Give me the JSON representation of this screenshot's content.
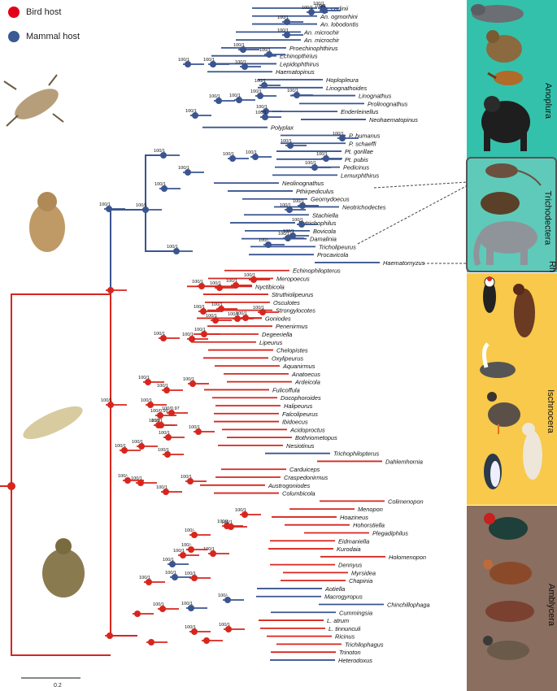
{
  "legend": [
    {
      "label": "Bird host",
      "color": "#e4001b"
    },
    {
      "label": "Mammal host",
      "color": "#3b5a92"
    }
  ],
  "colors": {
    "bird": "#d7261e",
    "mammal": "#3a5590",
    "anoplura_bg": "#2fbfa8",
    "rhyncophthirina_bg": "#3fc6b3",
    "ischnocera_bg": "#f7c842",
    "amblycera_bg": "#8b6f5e"
  },
  "groups": [
    {
      "label": "Anoplura",
      "color": "#2fbfa8"
    },
    {
      "label": "Trichodectera",
      "color": "#2fbfa8"
    },
    {
      "label": "Rh",
      "color": "#3fc6b3"
    },
    {
      "label": "Ischnocera",
      "color": "#f7c842"
    },
    {
      "label": "Amblycera",
      "color": "#8b6f5e"
    }
  ],
  "scale_label": "0.2",
  "taxa": [
    {
      "name": "An. carlinii",
      "host": "mammal"
    },
    {
      "name": "An. ogmorhini",
      "host": "mammal"
    },
    {
      "name": "An. lobodontis",
      "host": "mammal"
    },
    {
      "name": "An. microchir",
      "host": "mammal"
    },
    {
      "name": "An. microchir",
      "host": "mammal"
    },
    {
      "name": "Proechinophthirus",
      "host": "mammal"
    },
    {
      "name": "Echinopthirius",
      "host": "mammal"
    },
    {
      "name": "Lepidophthirus",
      "host": "mammal"
    },
    {
      "name": "Haematopinus",
      "host": "mammal"
    },
    {
      "name": "Hoplopleura",
      "host": "mammal"
    },
    {
      "name": "Linognathoides",
      "host": "mammal"
    },
    {
      "name": "Linognathus",
      "host": "mammal"
    },
    {
      "name": "Prolinognathus",
      "host": "mammal"
    },
    {
      "name": "Enderleinellus",
      "host": "mammal"
    },
    {
      "name": "Neohaematopinus",
      "host": "mammal"
    },
    {
      "name": "Polyplax",
      "host": "mammal"
    },
    {
      "name": "P. humanus",
      "host": "mammal"
    },
    {
      "name": "P. schaeffi",
      "host": "mammal"
    },
    {
      "name": "Pt. gorillae",
      "host": "mammal"
    },
    {
      "name": "Pt. pubis",
      "host": "mammal"
    },
    {
      "name": "Pedicinus",
      "host": "mammal"
    },
    {
      "name": "Lemurphthirus",
      "host": "mammal"
    },
    {
      "name": "Neolinognathus",
      "host": "mammal"
    },
    {
      "name": "Pthirpediculus",
      "host": "mammal"
    },
    {
      "name": "Geomydoecus",
      "host": "mammal"
    },
    {
      "name": "Neotrichodectes",
      "host": "mammal"
    },
    {
      "name": "Stachiella",
      "host": "mammal"
    },
    {
      "name": "Eutrichophilus",
      "host": "mammal"
    },
    {
      "name": "Bovicola",
      "host": "mammal"
    },
    {
      "name": "Damalinia",
      "host": "mammal"
    },
    {
      "name": "Tricholipeurus",
      "host": "mammal"
    },
    {
      "name": "Procavicola",
      "host": "mammal"
    },
    {
      "name": "Haematomyzus",
      "host": "mammal"
    },
    {
      "name": "Echinophilopterus",
      "host": "bird"
    },
    {
      "name": "Meropoecus",
      "host": "bird"
    },
    {
      "name": "Nyctibicola",
      "host": "bird"
    },
    {
      "name": "Struthiolipeurus",
      "host": "bird"
    },
    {
      "name": "Osculotes",
      "host": "bird"
    },
    {
      "name": "Strongylocotes",
      "host": "bird"
    },
    {
      "name": "Goniodes",
      "host": "bird"
    },
    {
      "name": "Penenirmus",
      "host": "bird"
    },
    {
      "name": "Degeeriella",
      "host": "bird"
    },
    {
      "name": "Lipeurus",
      "host": "bird"
    },
    {
      "name": "Chelopistes",
      "host": "bird"
    },
    {
      "name": "Oxylipeurus",
      "host": "bird"
    },
    {
      "name": "Aquanirmus",
      "host": "bird"
    },
    {
      "name": "Anatoecus",
      "host": "bird"
    },
    {
      "name": "Ardeicola",
      "host": "bird"
    },
    {
      "name": "Fulicoffula",
      "host": "bird"
    },
    {
      "name": "Docophoroides",
      "host": "bird"
    },
    {
      "name": "Halipeurus",
      "host": "bird"
    },
    {
      "name": "Falcolipeurus",
      "host": "bird"
    },
    {
      "name": "Ibidoecus",
      "host": "bird"
    },
    {
      "name": "Acidoproctus",
      "host": "bird"
    },
    {
      "name": "Bothriometopus",
      "host": "bird"
    },
    {
      "name": "Nesiotinus",
      "host": "bird"
    },
    {
      "name": "Trichophilopterus",
      "host": "mammal"
    },
    {
      "name": "Dahlemhornia",
      "host": "bird"
    },
    {
      "name": "Carduiceps",
      "host": "bird"
    },
    {
      "name": "Craspedonirmus",
      "host": "bird"
    },
    {
      "name": "Austrogoniodes",
      "host": "bird"
    },
    {
      "name": "Columbicola",
      "host": "bird"
    },
    {
      "name": "Colimenopon",
      "host": "bird"
    },
    {
      "name": "Menopon",
      "host": "bird"
    },
    {
      "name": "Hoazineus",
      "host": "bird"
    },
    {
      "name": "Hohorstiella",
      "host": "bird"
    },
    {
      "name": "Plegadiphilus",
      "host": "bird"
    },
    {
      "name": "Eidmaniella",
      "host": "bird"
    },
    {
      "name": "Kurodaia",
      "host": "bird"
    },
    {
      "name": "Holomenopon",
      "host": "bird"
    },
    {
      "name": "Dennyus",
      "host": "bird"
    },
    {
      "name": "Myrsidea",
      "host": "bird"
    },
    {
      "name": "Chapinia",
      "host": "bird"
    },
    {
      "name": "Aotiella",
      "host": "mammal"
    },
    {
      "name": "Macrogyropus",
      "host": "mammal"
    },
    {
      "name": "Chinchillophaga",
      "host": "mammal"
    },
    {
      "name": "Cummingsia",
      "host": "mammal"
    },
    {
      "name": "L. atrum",
      "host": "bird"
    },
    {
      "name": "L. tinnunculi",
      "host": "bird"
    },
    {
      "name": "Ricinus",
      "host": "bird"
    },
    {
      "name": "Trichilophagus",
      "host": "bird"
    },
    {
      "name": "Trinoton",
      "host": "bird"
    },
    {
      "name": "Heterodoxus",
      "host": "mammal"
    }
  ],
  "support_labels": [
    "100/1",
    "100/1",
    "100/1",
    "100/1",
    "100/1",
    "100/1",
    "100/1",
    "100/1",
    "100/1",
    "100/1",
    "100/1",
    "100/1",
    "100/1",
    "100/1",
    "100/1",
    "100/1",
    "100/1",
    "100/1",
    "100/1",
    "100/1",
    "100/1",
    "100/1",
    "100/1",
    "100/1",
    "100/1",
    "100/1",
    "100/1",
    "100/1",
    "100/1",
    "100/1",
    "100/1",
    "100/1",
    "100/-",
    "100/1",
    "100/1",
    "100/1",
    "100/1",
    "100/1",
    "100/1",
    "100/1",
    "100/1",
    "100/1",
    "100/1",
    "100/1",
    "100/1",
    "100/1",
    "100/1",
    "100/1",
    "100/1",
    "100/1",
    "100/1",
    "100/0.97",
    "100/1",
    "100/1",
    "100/0.99",
    "100/1",
    "100/1",
    "100/1",
    "100/1",
    "100/1",
    "100/1",
    "100/1",
    "100/1",
    "100/1",
    "100/-",
    "100/1",
    "100/1",
    "100/1",
    "100/1",
    "100/1",
    "100/-",
    "100/1",
    "100/-",
    "100/1",
    "100/1",
    "100/1",
    "100/1",
    "100/-",
    "100/1",
    "100/1",
    "100/1",
    "100/1",
    "100/1"
  ]
}
